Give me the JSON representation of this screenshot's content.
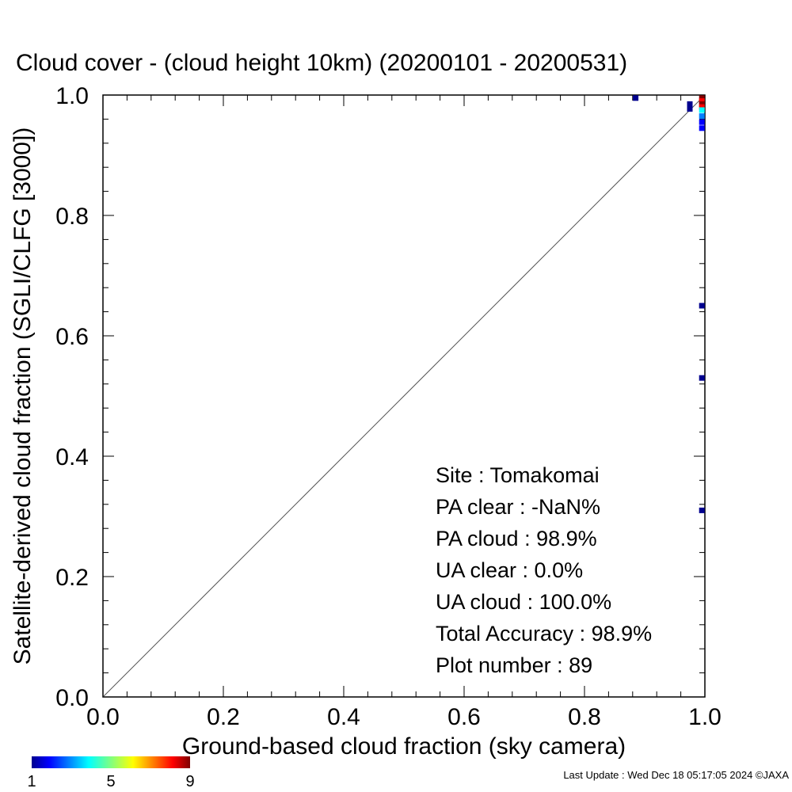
{
  "chart_data": {
    "type": "heatmap",
    "title": "Cloud cover - (cloud height 10km)  (20200101 - 20200531)",
    "xlabel": "Ground-based cloud fraction (sky camera)",
    "ylabel": "Satellite-derived cloud fraction (SGLI/CLFG [3000])",
    "xlim": [
      0.0,
      1.0
    ],
    "ylim": [
      0.0,
      1.0
    ],
    "x_ticks": [
      "0.0",
      "0.2",
      "0.4",
      "0.6",
      "0.8",
      "1.0"
    ],
    "y_ticks": [
      "0.0",
      "0.2",
      "0.4",
      "0.6",
      "0.8",
      "1.0"
    ],
    "grid": false,
    "reference_line": "1:1 diagonal",
    "colorbar": {
      "min": 1,
      "max": 9,
      "tick_labels": [
        "1",
        "5",
        "9"
      ]
    },
    "points": [
      {
        "x": 0.885,
        "y": 0.995,
        "count": 1
      },
      {
        "x": 0.975,
        "y": 0.985,
        "count": 1
      },
      {
        "x": 0.975,
        "y": 0.977,
        "count": 1
      },
      {
        "x": 0.995,
        "y": 0.995,
        "count": 9
      },
      {
        "x": 0.995,
        "y": 0.99,
        "count": 8
      },
      {
        "x": 0.995,
        "y": 0.985,
        "count": 9
      },
      {
        "x": 0.995,
        "y": 0.98,
        "count": 8
      },
      {
        "x": 0.995,
        "y": 0.975,
        "count": 4
      },
      {
        "x": 0.995,
        "y": 0.965,
        "count": 3
      },
      {
        "x": 0.995,
        "y": 0.955,
        "count": 2
      },
      {
        "x": 0.995,
        "y": 0.945,
        "count": 2
      },
      {
        "x": 0.995,
        "y": 0.65,
        "count": 1
      },
      {
        "x": 0.995,
        "y": 0.53,
        "count": 1
      },
      {
        "x": 0.995,
        "y": 0.31,
        "count": 1
      }
    ],
    "stats": [
      "Site : Tomakomai",
      "PA clear :  -NaN%",
      "PA cloud :  98.9%",
      "UA clear :   0.0%",
      "UA cloud : 100.0%",
      "Total Accuracy :  98.9%",
      "Plot number :        89"
    ]
  },
  "footer": "Last Update : Wed Dec 18 05:17:05 2024  ©JAXA",
  "colors": {
    "colormap": [
      "#00008f",
      "#0000ff",
      "#0080ff",
      "#00ffff",
      "#80ff80",
      "#ffff00",
      "#ff8000",
      "#ff0000",
      "#800000"
    ],
    "reference_line": "#555555"
  }
}
